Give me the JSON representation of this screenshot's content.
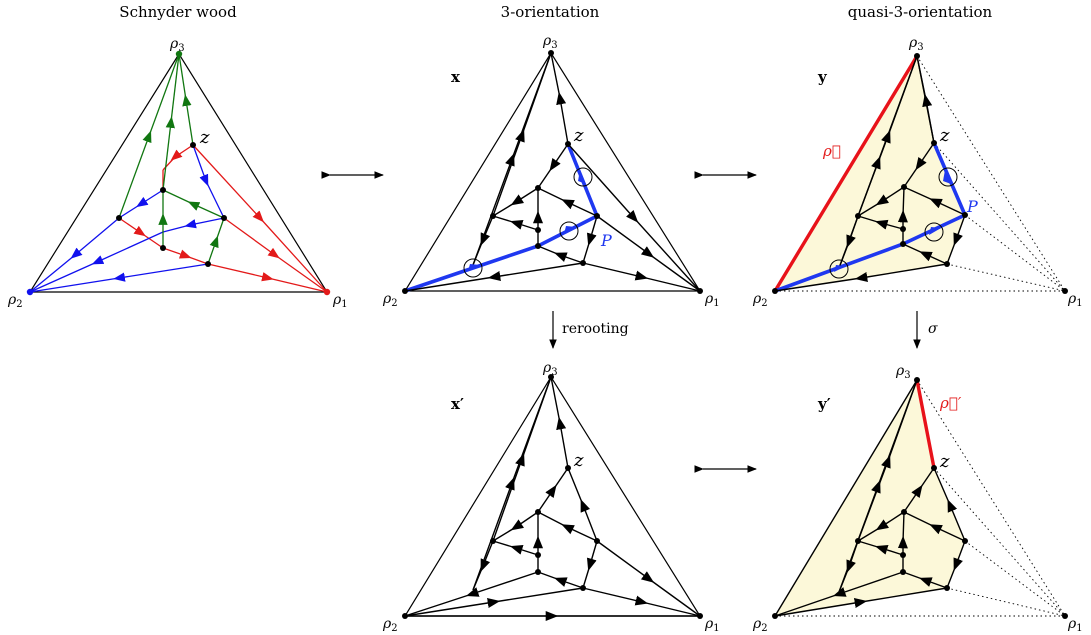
{
  "titles": {
    "schnyder": "Schnyder wood",
    "three": "3-orientation",
    "quasi": "quasi-3-orientation"
  },
  "labels": {
    "rho": "ρ",
    "sub1": "1",
    "sub2": "2",
    "sub3": "3",
    "z": "z",
    "P": "P",
    "x": "x",
    "y": "y",
    "xprime": "x′",
    "yprime": "y′",
    "rho_vec": "ρ⃗",
    "rho_vec_prime": "ρ⃗′",
    "rerooting": "rerooting",
    "sigma": "σ"
  },
  "colors": {
    "red": "#e31a1a",
    "blue": "#1111ee",
    "green": "#117711",
    "path_blue": "#1f38f0",
    "face_fill": "#fcf8d9"
  }
}
